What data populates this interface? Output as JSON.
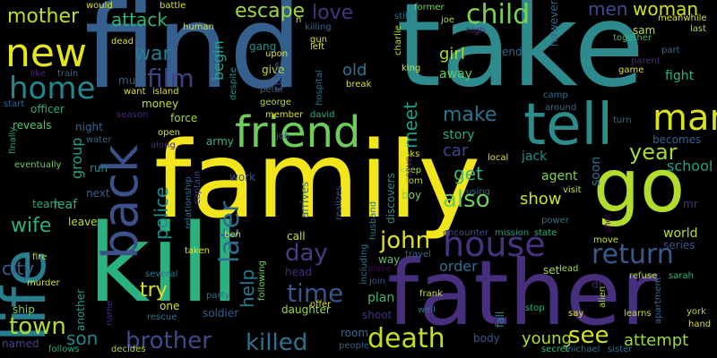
{
  "title": "",
  "words": [
    {
      "text": "family",
      "color": "#f2e51c"
    },
    {
      "text": "find",
      "color": "#35608d"
    },
    {
      "text": "take",
      "color": "#2e8b8d"
    },
    {
      "text": "kill",
      "color": "#2bb07f"
    },
    {
      "text": "father",
      "color": "#482f7e"
    },
    {
      "text": "go",
      "color": "#b3dd2c"
    },
    {
      "text": "life",
      "color": "#277e8e"
    },
    {
      "text": "tell",
      "color": "#2b8c8c"
    },
    {
      "text": "friend",
      "color": "#6cce59"
    },
    {
      "text": "man",
      "color": "#d9e21b"
    },
    {
      "text": "back",
      "color": "#3c518a"
    },
    {
      "text": "house",
      "color": "#47337f"
    },
    {
      "text": "home",
      "color": "#24878e"
    },
    {
      "text": "new",
      "color": "#e4e51a"
    },
    {
      "text": "return",
      "color": "#38598c"
    },
    {
      "text": "child",
      "color": "#7ad151"
    },
    {
      "text": "death",
      "color": "#bfdf25"
    },
    {
      "text": "killed",
      "color": "#2c728e"
    },
    {
      "text": "brother",
      "color": "#3e4a89"
    },
    {
      "text": "time",
      "color": "#3a538b"
    },
    {
      "text": "later",
      "color": "#2f6b8e"
    },
    {
      "text": "town",
      "color": "#b2dd2d"
    },
    {
      "text": "also",
      "color": "#6ccd5a"
    },
    {
      "text": "see",
      "color": "#d5e21a"
    },
    {
      "text": "john",
      "color": "#dde318"
    },
    {
      "text": "film",
      "color": "#424086"
    },
    {
      "text": "men",
      "color": "#3e4c8a"
    },
    {
      "text": "woman",
      "color": "#d2e21b"
    },
    {
      "text": "escape",
      "color": "#9bd93c"
    },
    {
      "text": "love",
      "color": "#46327e"
    },
    {
      "text": "year",
      "color": "#a2da37"
    },
    {
      "text": "mother",
      "color": "#bddf26"
    },
    {
      "text": "make",
      "color": "#2b748e"
    },
    {
      "text": "war",
      "color": "#27808e"
    },
    {
      "text": "day",
      "color": "#433d84"
    },
    {
      "text": "attack",
      "color": "#2fb47c"
    },
    {
      "text": "meet",
      "color": "#1fa187"
    },
    {
      "text": "try",
      "color": "#d8e219"
    },
    {
      "text": "police",
      "color": "#218f8d"
    },
    {
      "text": "help",
      "color": "#29798e"
    },
    {
      "text": "wife",
      "color": "#2eb37c"
    },
    {
      "text": "city",
      "color": "#365d8d"
    },
    {
      "text": "son",
      "color": "#24878e"
    },
    {
      "text": "get",
      "color": "#38b977"
    },
    {
      "text": "car",
      "color": "#3e4989"
    },
    {
      "text": "girl",
      "color": "#aadc32"
    },
    {
      "text": "old",
      "color": "#2a778e"
    },
    {
      "text": "begin",
      "color": "#20a386"
    },
    {
      "text": "story",
      "color": "#25ac82"
    },
    {
      "text": "young",
      "color": "#addc30"
    },
    {
      "text": "attempt",
      "color": "#98d83e"
    },
    {
      "text": "school",
      "color": "#1fa088"
    },
    {
      "text": "order",
      "color": "#2d718e"
    },
    {
      "text": "show",
      "color": "#cae11f"
    },
    {
      "text": "group",
      "color": "#1fa187"
    },
    {
      "text": "away",
      "color": "#5cc863"
    },
    {
      "text": "world",
      "color": "#b5de2b"
    },
    {
      "text": "leaf",
      "color": "#2ab07f"
    },
    {
      "text": "agent",
      "color": "#7fd34e"
    },
    {
      "text": "jack",
      "color": "#21908d"
    },
    {
      "text": "fight",
      "color": "#2db27d"
    },
    {
      "text": "soon",
      "color": "#2c738e"
    },
    {
      "text": "plan",
      "color": "#38b977"
    },
    {
      "text": "shoot",
      "color": "#472f7d"
    },
    {
      "text": "money",
      "color": "#c2df23"
    },
    {
      "text": "force",
      "color": "#a0da39"
    },
    {
      "text": "give",
      "color": "#c5e021"
    },
    {
      "text": "however",
      "color": "#31678e"
    },
    {
      "text": "must",
      "color": "#34608d"
    },
    {
      "text": "army",
      "color": "#34b679"
    },
    {
      "text": "work",
      "color": "#3b528b"
    },
    {
      "text": "night",
      "color": "#31678e"
    },
    {
      "text": "run",
      "color": "#23888e"
    },
    {
      "text": "next",
      "color": "#355f8d"
    },
    {
      "text": "team",
      "color": "#27ad81"
    },
    {
      "text": "leave",
      "color": "#bade28"
    },
    {
      "text": "call",
      "color": "#c8e020"
    },
    {
      "text": "head",
      "color": "#472d7b"
    },
    {
      "text": "daughter",
      "color": "#9bd93c"
    },
    {
      "text": "soldier",
      "color": "#34608d"
    },
    {
      "text": "one",
      "color": "#dae319"
    },
    {
      "text": "another",
      "color": "#1fa088"
    },
    {
      "text": "room",
      "color": "#31678e"
    },
    {
      "text": "body",
      "color": "#3a548c"
    },
    {
      "text": "ship",
      "color": "#7ad151"
    },
    {
      "text": "named",
      "color": "#414487"
    },
    {
      "text": "end",
      "color": "#31678e"
    },
    {
      "text": "way",
      "color": "#5ac864"
    },
    {
      "text": "arrives",
      "color": "#2c728e"
    },
    {
      "text": "discovers",
      "color": "#218f8d"
    },
    {
      "text": "boy",
      "color": "#7fd34e"
    },
    {
      "text": "set",
      "color": "#a8db34"
    },
    {
      "text": "fall",
      "color": "#218f8d"
    },
    {
      "text": "series",
      "color": "#3b528b"
    },
    {
      "text": "officer",
      "color": "#25ac82"
    },
    {
      "text": "reveals",
      "color": "#56c667"
    },
    {
      "text": "becomes",
      "color": "#35608d"
    },
    {
      "text": "gang",
      "color": "#21918c"
    },
    {
      "text": "come",
      "color": "#3b528b"
    },
    {
      "text": "dr",
      "color": "#482576"
    },
    {
      "text": "sam",
      "color": "#c0df25"
    },
    {
      "text": "mr",
      "color": "#453781"
    },
    {
      "text": "offer",
      "color": "#dde318"
    },
    {
      "text": "visit",
      "color": "#d0e11c"
    },
    {
      "text": "lead",
      "color": "#a5db36"
    },
    {
      "text": "york",
      "color": "#a8db34"
    },
    {
      "text": "hand",
      "color": "#d8e219"
    },
    {
      "text": "stop",
      "color": "#29af7f"
    },
    {
      "text": "say",
      "color": "#e7e419"
    },
    {
      "text": "learns",
      "color": "#c2df23"
    },
    {
      "text": "murder",
      "color": "#d5e21a"
    },
    {
      "text": "fire",
      "color": "#bddf26"
    },
    {
      "text": "people",
      "color": "#33638d"
    },
    {
      "text": "follows",
      "color": "#26ad81"
    },
    {
      "text": "decides",
      "color": "#a0da39"
    },
    {
      "text": "secret",
      "color": "#35b779"
    },
    {
      "text": "michael",
      "color": "#2d708e"
    },
    {
      "text": "sister",
      "color": "#2d708e"
    },
    {
      "text": "well",
      "color": "#2a788e"
    },
    {
      "text": "frank",
      "color": "#cde11d"
    },
    {
      "text": "join",
      "color": "#39558c"
    },
    {
      "text": "place",
      "color": "#440154"
    },
    {
      "text": "travel",
      "color": "#2e6d8e"
    },
    {
      "text": "encounter",
      "color": "#3b518b"
    },
    {
      "text": "mission",
      "color": "#1e9c89"
    },
    {
      "text": "state",
      "color": "#27ad81"
    },
    {
      "text": "power",
      "color": "#2c728e"
    },
    {
      "text": "move",
      "color": "#c5e021"
    },
    {
      "text": "refuse",
      "color": "#b5de2b"
    },
    {
      "text": "sarah",
      "color": "#2eb37c"
    },
    {
      "text": "alien",
      "color": "#a5db36"
    },
    {
      "text": "apartment",
      "color": "#31688e"
    },
    {
      "text": "shot",
      "color": "#440154"
    },
    {
      "text": "taken",
      "color": "#e5e419"
    },
    {
      "text": "several",
      "color": "#2a788e"
    },
    {
      "text": "party",
      "color": "#2c728e"
    },
    {
      "text": "following",
      "color": "#6ece58"
    },
    {
      "text": "rescue",
      "color": "#2a788e"
    },
    {
      "text": "name",
      "color": "#482979"
    },
    {
      "text": "relationship",
      "color": "#2e6e8e"
    },
    {
      "text": "captain",
      "color": "#3e4989"
    },
    {
      "text": "ben",
      "color": "#d2e21b"
    },
    {
      "text": "job",
      "color": "#3b528b"
    },
    {
      "text": "member",
      "color": "#dde318"
    },
    {
      "text": "david",
      "color": "#29af7f"
    },
    {
      "text": "peter",
      "color": "#35608d"
    },
    {
      "text": "george",
      "color": "#b2dd2d"
    },
    {
      "text": "despite",
      "color": "#24878e"
    },
    {
      "text": "hospital",
      "color": "#2d708e"
    },
    {
      "text": "break",
      "color": "#dde318"
    },
    {
      "text": "king",
      "color": "#cde11d"
    },
    {
      "text": "joe",
      "color": "#a8db34"
    },
    {
      "text": "high",
      "color": "#472d7b"
    },
    {
      "text": "still",
      "color": "#2c728e"
    },
    {
      "text": "charlie",
      "color": "#b5de2b"
    },
    {
      "text": "former",
      "color": "#6ece58"
    },
    {
      "text": "meanwhile",
      "color": "#dde318"
    },
    {
      "text": "together",
      "color": "#38b977"
    },
    {
      "text": "last",
      "color": "#a5db36"
    },
    {
      "text": "parent",
      "color": "#482979"
    },
    {
      "text": "game",
      "color": "#dde318"
    },
    {
      "text": "part",
      "color": "#2c728e"
    },
    {
      "text": "camp",
      "color": "#2c728e"
    },
    {
      "text": "around",
      "color": "#31688e"
    },
    {
      "text": "turn",
      "color": "#2c728e"
    },
    {
      "text": "local",
      "color": "#e5e419"
    },
    {
      "text": "keep",
      "color": "#b2dd2d"
    },
    {
      "text": "tom",
      "color": "#b2dd2d"
    },
    {
      "text": "using",
      "color": "#31688e"
    },
    {
      "text": "including",
      "color": "#2c728e"
    },
    {
      "text": "husband",
      "color": "#2a788e"
    },
    {
      "text": "realizes",
      "color": "#3b528b"
    },
    {
      "text": "asks",
      "color": "#dde318"
    },
    {
      "text": "save",
      "color": "#482979"
    },
    {
      "text": "would",
      "color": "#dde318"
    },
    {
      "text": "battle",
      "color": "#dde318"
    },
    {
      "text": "dead",
      "color": "#dde318"
    },
    {
      "text": "human",
      "color": "#dde318"
    },
    {
      "text": "killing",
      "color": "#31688e"
    },
    {
      "text": "gun",
      "color": "#dde318"
    },
    {
      "text": "left",
      "color": "#dde318"
    },
    {
      "text": "upon",
      "color": "#dde318"
    },
    {
      "text": "like",
      "color": "#482979"
    },
    {
      "text": "train",
      "color": "#31688e"
    },
    {
      "text": "want",
      "color": "#dde318"
    },
    {
      "text": "island",
      "color": "#dde318"
    },
    {
      "text": "season",
      "color": "#482979"
    },
    {
      "text": "start",
      "color": "#31688e"
    },
    {
      "text": "water",
      "color": "#31688e"
    },
    {
      "text": "open",
      "color": "#dde318"
    },
    {
      "text": "along",
      "color": "#482979"
    },
    {
      "text": "finally",
      "color": "#1fa187"
    },
    {
      "text": "eventually",
      "color": "#6ece58"
    },
    {
      "text": "n",
      "color": "#dde318"
    }
  ]
}
